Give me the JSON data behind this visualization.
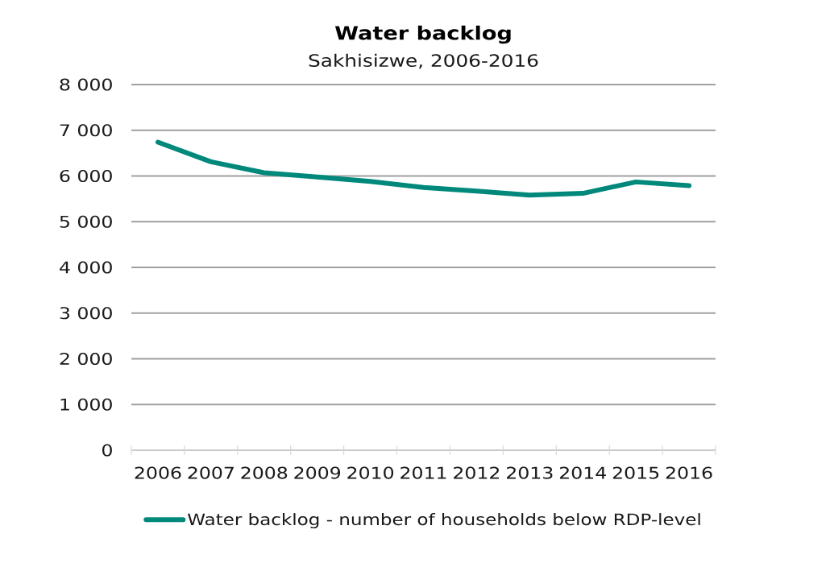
{
  "chart_data": {
    "type": "line",
    "title": "Water backlog",
    "subtitle": "Sakhisizwe, 2006-2016",
    "categories": [
      "2006",
      "2007",
      "2008",
      "2009",
      "2010",
      "2011",
      "2012",
      "2013",
      "2014",
      "2015",
      "2016"
    ],
    "series": [
      {
        "name": "Water backlog - number of households below RDP-level",
        "color": "#00897b",
        "values": [
          6740,
          6310,
          6070,
          5980,
          5880,
          5750,
          5670,
          5580,
          5620,
          5870,
          5790
        ]
      }
    ],
    "ylim": [
      0,
      8000
    ],
    "yticks": [
      0,
      {
        "value": 1000,
        "label": "1 000"
      },
      {
        "value": 2000,
        "label": "2 000"
      },
      {
        "value": 3000,
        "label": "3 000"
      },
      {
        "value": 4000,
        "label": "4 000"
      },
      {
        "value": 5000,
        "label": "5 000"
      },
      {
        "value": 6000,
        "label": "6 000"
      },
      {
        "value": 7000,
        "label": "7 000"
      },
      {
        "value": 8000,
        "label": "8 000"
      }
    ],
    "grid": "y",
    "legend": "bottom",
    "marker": "none",
    "line_style": "solid"
  }
}
